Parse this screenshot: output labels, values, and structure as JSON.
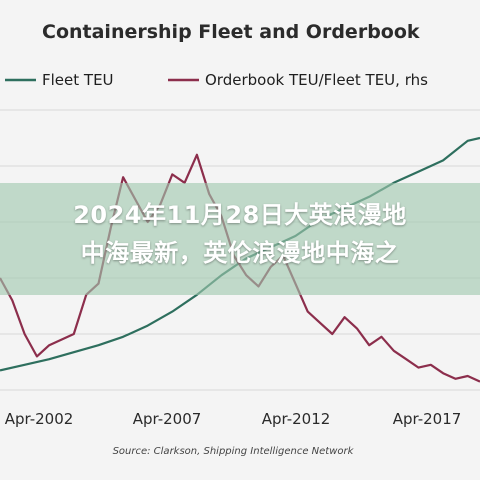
{
  "overlay": {
    "line1": "2024年11月28日大英浪漫地",
    "line2": "中海最新，英伦浪漫地中海之"
  },
  "colors": {
    "fleet": "#2e6f5e",
    "orderbook": "#8c2e4c",
    "grid": "#d9d9d9",
    "overlay": "#a0c8af"
  },
  "chart_data": {
    "type": "line",
    "title": "Containership Fleet and Orderbook",
    "source": "Source: Clarkson, Shipping Intelligence Network",
    "x_tick_labels": [
      "Apr-2002",
      "Apr-2007",
      "Apr-2012",
      "Apr-2017"
    ],
    "xlim": [
      1999.5,
      2019
    ],
    "ylim": [
      0,
      100
    ],
    "grid": true,
    "legend_position": "top",
    "series": [
      {
        "name": "Fleet TEU",
        "color": "#2e6f5e",
        "x": [
          1999.5,
          2000.5,
          2001.5,
          2002.5,
          2003.5,
          2004.5,
          2005.5,
          2006.5,
          2007.5,
          2008.5,
          2009.5,
          2010.5,
          2011.5,
          2012.5,
          2013.5,
          2014.5,
          2015.5,
          2016.5,
          2017.5,
          2018.5,
          2019
        ],
        "values": [
          7,
          9,
          11,
          13.5,
          16,
          19,
          23,
          28,
          34,
          41,
          47,
          51,
          55,
          61,
          65,
          69,
          74,
          78,
          82,
          89,
          90
        ]
      },
      {
        "name": "Orderbook TEU/Fleet TEU, rhs",
        "color": "#8c2e4c",
        "x": [
          1999.5,
          2000,
          2000.5,
          2001,
          2001.5,
          2002,
          2002.5,
          2003,
          2003.5,
          2004,
          2004.5,
          2005,
          2005.5,
          2006,
          2006.5,
          2007,
          2007.5,
          2008,
          2008.5,
          2009,
          2009.5,
          2010,
          2010.5,
          2011,
          2011.5,
          2012,
          2012.5,
          2013,
          2013.5,
          2014,
          2014.5,
          2015,
          2015.5,
          2016,
          2016.5,
          2017,
          2017.5,
          2018,
          2018.5,
          2019
        ],
        "values": [
          40,
          32,
          20,
          12,
          16,
          18,
          20,
          34,
          38,
          58,
          76,
          68,
          60,
          66,
          77,
          74,
          84,
          70,
          62,
          48,
          41,
          37,
          44,
          48,
          38,
          28,
          24,
          20,
          26,
          22,
          16,
          19,
          14,
          11,
          8,
          9,
          6,
          4,
          5,
          3
        ]
      }
    ]
  }
}
